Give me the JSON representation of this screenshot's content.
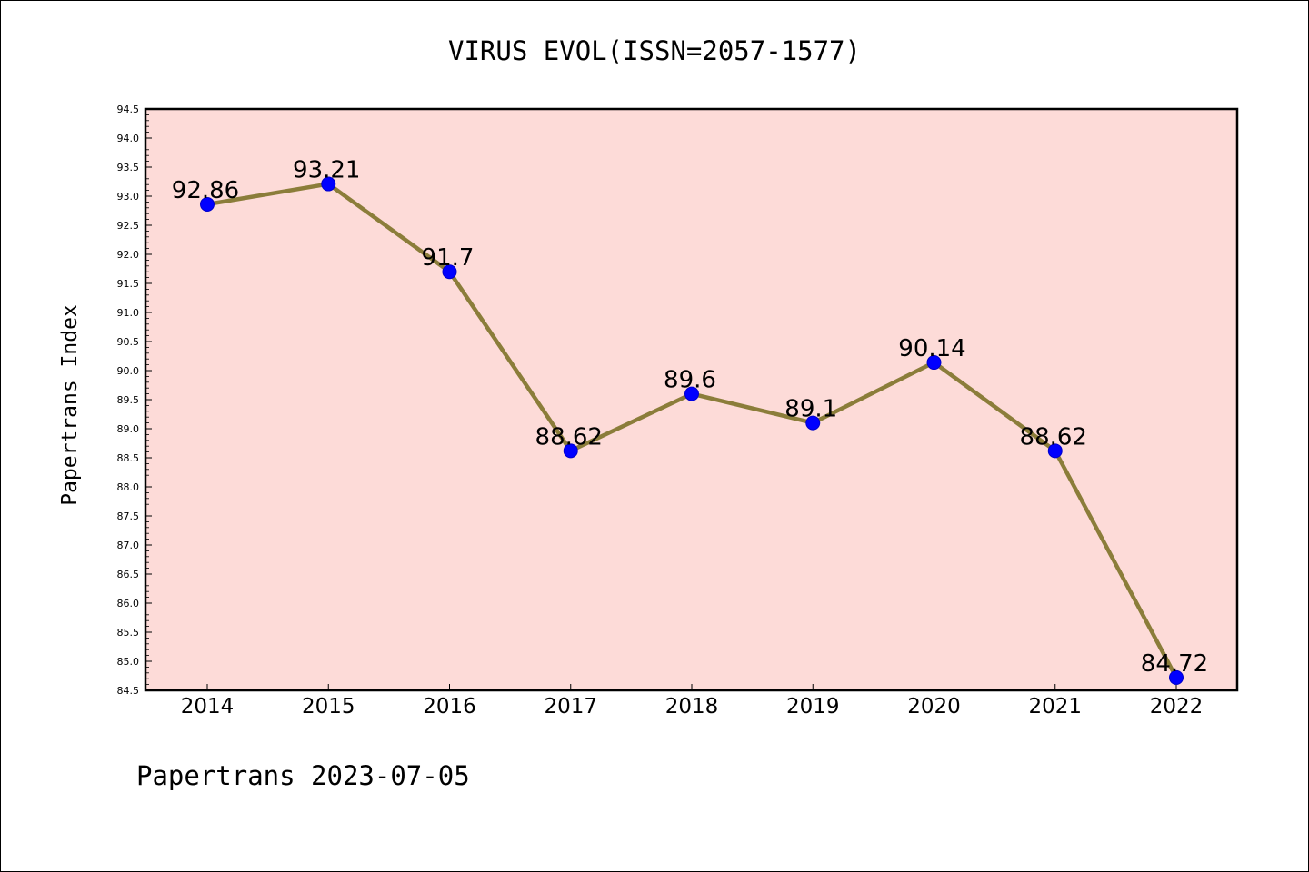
{
  "chart_data": {
    "type": "line",
    "title": "VIRUS EVOL(ISSN=2057-1577)",
    "xlabel": "",
    "ylabel": "Papertrans Index",
    "x": [
      "2014",
      "2015",
      "2016",
      "2017",
      "2018",
      "2019",
      "2020",
      "2021",
      "2022"
    ],
    "series": [
      {
        "values": [
          92.86,
          93.21,
          91.7,
          88.62,
          89.6,
          89.1,
          90.14,
          88.62,
          84.72
        ],
        "data_labels": [
          "92.86",
          "93.21",
          "91.7",
          "88.62",
          "89.6",
          "89.1",
          "90.14",
          "88.62",
          "84.72"
        ]
      }
    ],
    "ylim": [
      84.5,
      94.5
    ],
    "yticks": [
      "84.5",
      "85.0",
      "85.5",
      "86.0",
      "86.5",
      "87.0",
      "87.5",
      "88.0",
      "88.5",
      "89.0",
      "89.5",
      "90.0",
      "90.5",
      "91.0",
      "91.5",
      "92.0",
      "92.5",
      "93.0",
      "93.5",
      "94.0",
      "94.5"
    ],
    "grid": false,
    "colors": {
      "line": "#8b7d3a",
      "marker": "#0000ff",
      "plot_background": "#fddbd8"
    }
  },
  "footer": "Papertrans 2023-07-05"
}
